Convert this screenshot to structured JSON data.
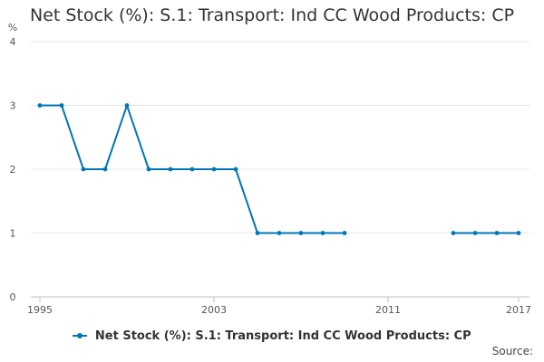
{
  "chart_data": {
    "type": "line",
    "title": "Net Stock (%): S.1: Transport: Ind CC Wood Products: CP",
    "ylabel": "%",
    "xlabel": "",
    "xlim": [
      1995,
      2017
    ],
    "ylim": [
      0,
      4
    ],
    "y_ticks": [
      0,
      1,
      2,
      3,
      4
    ],
    "x_ticks": [
      1995,
      2003,
      2011,
      2017
    ],
    "grid": true,
    "legend_position": "bottom-center",
    "series": [
      {
        "name": "Net Stock (%): S.1: Transport: Ind CC Wood Products: CP",
        "color": "#0077b5",
        "points": [
          {
            "x": 1995,
            "y": 3
          },
          {
            "x": 1996,
            "y": 3
          },
          {
            "x": 1997,
            "y": 2
          },
          {
            "x": 1998,
            "y": 2
          },
          {
            "x": 1999,
            "y": 3
          },
          {
            "x": 2000,
            "y": 2
          },
          {
            "x": 2001,
            "y": 2
          },
          {
            "x": 2002,
            "y": 2
          },
          {
            "x": 2003,
            "y": 2
          },
          {
            "x": 2004,
            "y": 2
          },
          {
            "x": 2005,
            "y": 1
          },
          {
            "x": 2006,
            "y": 1
          },
          {
            "x": 2007,
            "y": 1
          },
          {
            "x": 2008,
            "y": 1
          },
          {
            "x": 2009,
            "y": 1
          },
          {
            "x": 2014,
            "y": 1
          },
          {
            "x": 2015,
            "y": 1
          },
          {
            "x": 2016,
            "y": 1
          },
          {
            "x": 2017,
            "y": 1
          }
        ]
      }
    ]
  },
  "legend_label": "Net Stock (%): S.1: Transport: Ind CC Wood Products: CP",
  "source_label": "Source:"
}
